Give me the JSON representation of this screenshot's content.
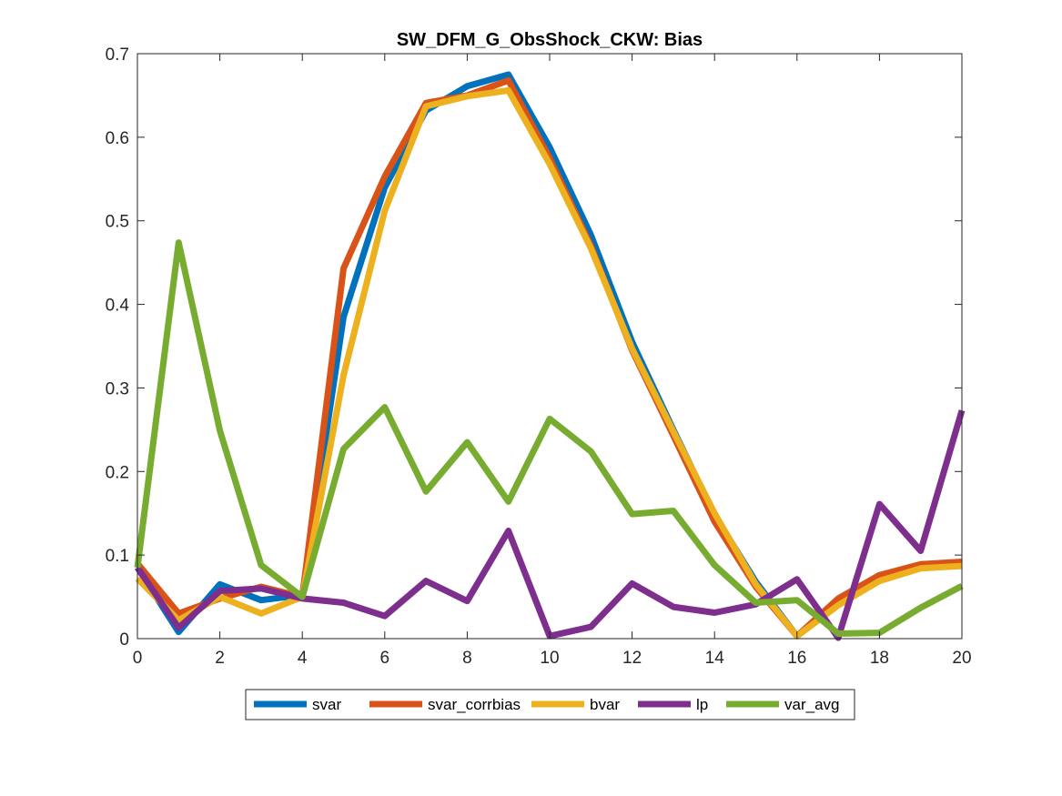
{
  "chart_data": {
    "type": "line",
    "title": "SW_DFM_G_ObsShock_CKW: Bias",
    "xlabel": "",
    "ylabel": "",
    "xlim": [
      0,
      20
    ],
    "ylim": [
      0,
      0.7
    ],
    "xticks": [
      0,
      2,
      4,
      6,
      8,
      10,
      12,
      14,
      16,
      18,
      20
    ],
    "yticks": [
      0,
      0.1,
      0.2,
      0.3,
      0.4,
      0.5,
      0.6,
      0.7
    ],
    "xtick_labels": [
      "0",
      "2",
      "4",
      "6",
      "8",
      "10",
      "12",
      "14",
      "16",
      "18",
      "20"
    ],
    "ytick_labels": [
      "0",
      "0.1",
      "0.2",
      "0.3",
      "0.4",
      "0.5",
      "0.6",
      "0.7"
    ],
    "grid": false,
    "legend_position": "bottom-outside",
    "x": [
      0,
      1,
      2,
      3,
      4,
      5,
      6,
      7,
      8,
      9,
      10,
      11,
      12,
      13,
      14,
      15,
      16,
      17,
      18,
      19,
      20
    ],
    "series": [
      {
        "name": "svar",
        "color": "#0072BD",
        "values": [
          0.085,
          0.008,
          0.065,
          0.046,
          0.052,
          0.385,
          0.54,
          0.632,
          0.661,
          0.675,
          0.588,
          0.483,
          0.355,
          0.25,
          0.148,
          0.068,
          0.003,
          0.043,
          0.072,
          0.086,
          0.089
        ]
      },
      {
        "name": "svar_corrbias",
        "color": "#D95319",
        "values": [
          0.09,
          0.03,
          0.048,
          0.062,
          0.05,
          0.443,
          0.553,
          0.641,
          0.65,
          0.668,
          0.575,
          0.47,
          0.345,
          0.243,
          0.14,
          0.062,
          0.003,
          0.048,
          0.076,
          0.089,
          0.092
        ]
      },
      {
        "name": "bvar",
        "color": "#EDB120",
        "values": [
          0.072,
          0.022,
          0.05,
          0.03,
          0.05,
          0.315,
          0.512,
          0.637,
          0.649,
          0.656,
          0.568,
          0.467,
          0.347,
          0.248,
          0.15,
          0.065,
          0.003,
          0.04,
          0.069,
          0.084,
          0.087
        ]
      },
      {
        "name": "lp",
        "color": "#7E2F8E",
        "values": [
          0.085,
          0.013,
          0.057,
          0.06,
          0.048,
          0.043,
          0.027,
          0.069,
          0.045,
          0.129,
          0.003,
          0.014,
          0.066,
          0.038,
          0.031,
          0.041,
          0.071,
          0.001,
          0.161,
          0.105,
          0.273
        ]
      },
      {
        "name": "var_avg",
        "color": "#77AC30",
        "values": [
          0.085,
          0.474,
          0.249,
          0.088,
          0.05,
          0.227,
          0.277,
          0.176,
          0.235,
          0.164,
          0.263,
          0.224,
          0.149,
          0.153,
          0.088,
          0.043,
          0.046,
          0.006,
          0.007,
          0.037,
          0.063
        ]
      }
    ]
  }
}
